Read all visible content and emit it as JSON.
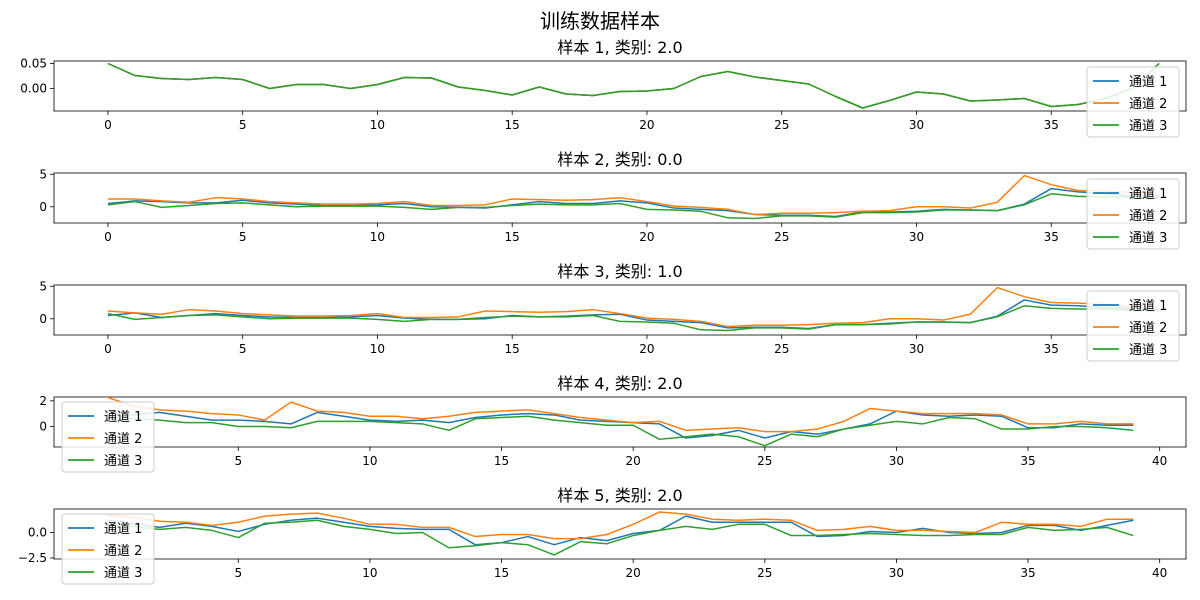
{
  "figure": {
    "title": "训练数据样本"
  },
  "colors": {
    "通道 1": "#1f77b4",
    "通道 2": "#ff7f0e",
    "通道 3": "#2ca02c"
  },
  "chart_data": [
    {
      "type": "line",
      "title": "样本 1, 类别: 2.0",
      "x": [
        0,
        1,
        2,
        3,
        4,
        5,
        6,
        7,
        8,
        9,
        10,
        11,
        12,
        13,
        14,
        15,
        16,
        17,
        18,
        19,
        20,
        21,
        22,
        23,
        24,
        25,
        26,
        27,
        28,
        29,
        30,
        31,
        32,
        33,
        34,
        35,
        36,
        37,
        38,
        39
      ],
      "xlim": [
        -2,
        40
      ],
      "ylim": [
        -0.045,
        0.055
      ],
      "xticks": [
        0,
        5,
        10,
        15,
        20,
        25,
        30,
        35
      ],
      "xticklabels": [
        "0",
        "5",
        "10",
        "15",
        "20",
        "25",
        "30",
        "35"
      ],
      "yticks": [
        0.05,
        0.0
      ],
      "yticklabels": [
        "0.05",
        "0.00"
      ],
      "legend": "right",
      "series": [
        {
          "name": "通道 1",
          "values": [
            0.05,
            0.026,
            0.02,
            0.018,
            0.022,
            0.018,
            0.0,
            0.008,
            0.008,
            0.0,
            0.008,
            0.022,
            0.021,
            0.003,
            -0.004,
            -0.013,
            0.003,
            -0.011,
            -0.014,
            -0.006,
            -0.005,
            0.0,
            0.024,
            0.034,
            0.023,
            0.016,
            0.009,
            -0.016,
            -0.039,
            -0.024,
            -0.007,
            -0.011,
            -0.025,
            -0.023,
            -0.02,
            -0.036,
            -0.032,
            -0.02,
            0.0,
            0.05
          ]
        },
        {
          "name": "通道 2",
          "values": [
            0.05,
            0.026,
            0.02,
            0.018,
            0.022,
            0.018,
            0.0,
            0.008,
            0.008,
            0.0,
            0.008,
            0.022,
            0.021,
            0.003,
            -0.004,
            -0.013,
            0.003,
            -0.011,
            -0.014,
            -0.006,
            -0.005,
            0.0,
            0.024,
            0.034,
            0.023,
            0.016,
            0.009,
            -0.016,
            -0.039,
            -0.024,
            -0.007,
            -0.011,
            -0.025,
            -0.023,
            -0.02,
            -0.036,
            -0.032,
            -0.02,
            0.0,
            0.05
          ]
        },
        {
          "name": "通道 3",
          "values": [
            0.05,
            0.026,
            0.02,
            0.018,
            0.022,
            0.018,
            0.0,
            0.008,
            0.008,
            0.0,
            0.008,
            0.022,
            0.021,
            0.003,
            -0.004,
            -0.013,
            0.003,
            -0.011,
            -0.014,
            -0.006,
            -0.005,
            0.0,
            0.024,
            0.034,
            0.023,
            0.016,
            0.009,
            -0.016,
            -0.039,
            -0.024,
            -0.007,
            -0.011,
            -0.025,
            -0.023,
            -0.02,
            -0.036,
            -0.032,
            -0.02,
            0.0,
            0.05
          ]
        }
      ]
    },
    {
      "type": "line",
      "title": "样本 2, 类别: 0.0",
      "x": [
        0,
        1,
        2,
        3,
        4,
        5,
        6,
        7,
        8,
        9,
        10,
        11,
        12,
        13,
        14,
        15,
        16,
        17,
        18,
        19,
        20,
        21,
        22,
        23,
        24,
        25,
        26,
        27,
        28,
        29,
        30,
        31,
        32,
        33,
        34,
        35,
        36,
        37,
        38,
        39
      ],
      "xlim": [
        -2,
        40
      ],
      "ylim": [
        -2.5,
        5.2
      ],
      "xticks": [
        0,
        5,
        10,
        15,
        20,
        25,
        30,
        35
      ],
      "xticklabels": [
        "0",
        "5",
        "10",
        "15",
        "20",
        "25",
        "30",
        "35"
      ],
      "yticks": [
        5,
        0
      ],
      "yticklabels": [
        "5",
        "0"
      ],
      "legend": "right",
      "series": [
        {
          "name": "通道 1",
          "values": [
            0.5,
            0.9,
            0.8,
            0.6,
            0.6,
            1.0,
            0.6,
            0.4,
            0.2,
            0.2,
            0.3,
            0.5,
            0.0,
            -0.1,
            -0.2,
            0.3,
            0.8,
            0.5,
            0.5,
            0.9,
            0.6,
            -0.2,
            -0.4,
            -0.6,
            -1.2,
            -1.3,
            -1.3,
            -1.5,
            -0.8,
            -0.8,
            -0.7,
            -0.4,
            -0.5,
            -0.6,
            0.4,
            2.8,
            2.3,
            2.0,
            1.7,
            1.6
          ]
        },
        {
          "name": "通道 2",
          "values": [
            1.2,
            1.2,
            0.9,
            0.7,
            1.4,
            1.2,
            0.8,
            0.6,
            0.4,
            0.4,
            0.5,
            0.8,
            0.2,
            0.2,
            0.3,
            1.2,
            1.1,
            1.0,
            1.1,
            1.4,
            0.8,
            0.1,
            -0.1,
            -0.4,
            -1.2,
            -1.0,
            -1.0,
            -0.9,
            -0.7,
            -0.6,
            0.0,
            0.0,
            -0.2,
            0.7,
            4.8,
            3.4,
            2.5,
            2.4,
            2.2,
            1.8
          ]
        },
        {
          "name": "通道 3",
          "values": [
            0.3,
            0.8,
            -0.1,
            0.2,
            0.5,
            0.6,
            0.3,
            0.0,
            0.1,
            0.1,
            0.1,
            -0.1,
            -0.4,
            -0.1,
            -0.1,
            0.2,
            0.4,
            0.3,
            0.3,
            0.5,
            -0.4,
            -0.5,
            -0.7,
            -1.7,
            -1.8,
            -1.4,
            -1.4,
            -1.6,
            -0.9,
            -0.9,
            -0.8,
            -0.5,
            -0.5,
            -0.6,
            0.3,
            2.0,
            1.6,
            1.5,
            1.5,
            1.3
          ]
        }
      ]
    },
    {
      "type": "line",
      "title": "样本 3, 类别: 1.0",
      "x": [
        0,
        1,
        2,
        3,
        4,
        5,
        6,
        7,
        8,
        9,
        10,
        11,
        12,
        13,
        14,
        15,
        16,
        17,
        18,
        19,
        20,
        21,
        22,
        23,
        24,
        25,
        26,
        27,
        28,
        29,
        30,
        31,
        32,
        33,
        34,
        35,
        36,
        37,
        38,
        39
      ],
      "xlim": [
        -2,
        40
      ],
      "ylim": [
        -2.5,
        5.2
      ],
      "xticks": [
        0,
        5,
        10,
        15,
        20,
        25,
        30,
        35
      ],
      "xticklabels": [
        "0",
        "5",
        "10",
        "15",
        "20",
        "25",
        "30",
        "35"
      ],
      "yticks": [
        5,
        0
      ],
      "yticklabels": [
        "5",
        "0"
      ],
      "legend": "right",
      "series": [
        {
          "name": "通道 1",
          "values": [
            0.5,
            0.9,
            0.2,
            0.5,
            0.8,
            0.5,
            0.3,
            0.2,
            0.2,
            0.3,
            0.5,
            0.1,
            -0.1,
            -0.1,
            0.0,
            0.5,
            0.3,
            0.4,
            0.6,
            0.7,
            -0.2,
            -0.4,
            -0.6,
            -1.4,
            -1.3,
            -1.3,
            -1.5,
            -0.9,
            -0.9,
            -0.7,
            -0.5,
            -0.5,
            -0.6,
            0.4,
            2.9,
            2.1,
            2.0,
            1.7,
            1.6,
            1.5
          ]
        },
        {
          "name": "通道 2",
          "values": [
            1.2,
            0.9,
            0.7,
            1.4,
            1.2,
            0.8,
            0.6,
            0.4,
            0.4,
            0.5,
            0.8,
            0.2,
            0.2,
            0.3,
            1.2,
            1.1,
            1.0,
            1.1,
            1.4,
            0.8,
            0.1,
            -0.1,
            -0.4,
            -1.2,
            -1.0,
            -1.0,
            -0.9,
            -0.7,
            -0.6,
            0.0,
            0.0,
            -0.2,
            0.7,
            4.8,
            3.4,
            2.5,
            2.4,
            2.2,
            1.8,
            1.7
          ]
        },
        {
          "name": "通道 3",
          "values": [
            0.8,
            -0.1,
            0.2,
            0.5,
            0.6,
            0.3,
            0.0,
            0.1,
            0.1,
            0.1,
            -0.1,
            -0.4,
            -0.1,
            -0.1,
            0.2,
            0.4,
            0.3,
            0.3,
            0.5,
            -0.4,
            -0.5,
            -0.7,
            -1.7,
            -1.8,
            -1.4,
            -1.4,
            -1.6,
            -0.9,
            -0.9,
            -0.8,
            -0.5,
            -0.5,
            -0.6,
            0.3,
            2.0,
            1.6,
            1.5,
            1.5,
            1.3,
            1.2
          ]
        }
      ]
    },
    {
      "type": "line",
      "title": "样本 4, 类别: 2.0",
      "x": [
        0,
        1,
        2,
        3,
        4,
        5,
        6,
        7,
        8,
        9,
        10,
        11,
        12,
        13,
        14,
        15,
        16,
        17,
        18,
        19,
        20,
        21,
        22,
        23,
        24,
        25,
        26,
        27,
        28,
        29,
        30,
        31,
        32,
        33,
        34,
        35,
        36,
        37,
        38,
        39
      ],
      "xlim": [
        -2,
        41
      ],
      "ylim": [
        -1.6,
        2.3
      ],
      "xticks": [
        5,
        10,
        15,
        20,
        25,
        30,
        35,
        40
      ],
      "xticklabels": [
        "5",
        "10",
        "15",
        "20",
        "25",
        "30",
        "35",
        "40"
      ],
      "yticks": [
        2,
        0
      ],
      "yticklabels": [
        "2",
        "0"
      ],
      "legend": "left",
      "series": [
        {
          "name": "通道 1",
          "values": [
            1.2,
            0.9,
            1.1,
            0.8,
            0.5,
            0.5,
            0.4,
            0.2,
            1.1,
            0.8,
            0.5,
            0.4,
            0.5,
            0.3,
            0.7,
            0.9,
            1.0,
            0.9,
            0.5,
            0.4,
            0.3,
            0.2,
            -0.9,
            -0.7,
            -0.3,
            -0.9,
            -0.4,
            -0.6,
            -0.2,
            0.2,
            1.2,
            0.9,
            0.8,
            0.9,
            0.8,
            -0.1,
            -0.1,
            0.2,
            0.1,
            0.1
          ]
        },
        {
          "name": "通道 2",
          "values": [
            2.3,
            1.6,
            1.3,
            1.2,
            1.0,
            0.9,
            0.5,
            1.9,
            1.2,
            1.1,
            0.8,
            0.8,
            0.6,
            0.8,
            1.1,
            1.2,
            1.3,
            1.0,
            0.7,
            0.5,
            0.3,
            0.4,
            -0.3,
            -0.2,
            -0.1,
            -0.4,
            -0.4,
            -0.2,
            0.4,
            1.4,
            1.2,
            1.0,
            1.0,
            1.0,
            0.9,
            0.2,
            0.2,
            0.4,
            0.2,
            0.2
          ]
        },
        {
          "name": "通道 3",
          "values": [
            0.6,
            0.6,
            0.5,
            0.3,
            0.3,
            0.0,
            0.0,
            -0.1,
            0.4,
            0.4,
            0.4,
            0.3,
            0.2,
            -0.3,
            0.6,
            0.7,
            0.8,
            0.5,
            0.3,
            0.1,
            0.1,
            -1.0,
            -0.8,
            -0.6,
            -0.8,
            -1.5,
            -0.6,
            -0.8,
            -0.2,
            0.1,
            0.4,
            0.2,
            0.7,
            0.6,
            -0.2,
            -0.2,
            0.0,
            0.0,
            -0.1,
            -0.3
          ]
        }
      ]
    },
    {
      "type": "line",
      "title": "样本 5, 类别: 2.0",
      "x": [
        0,
        1,
        2,
        3,
        4,
        5,
        6,
        7,
        8,
        9,
        10,
        11,
        12,
        13,
        14,
        15,
        16,
        17,
        18,
        19,
        20,
        21,
        22,
        23,
        24,
        25,
        26,
        27,
        28,
        29,
        30,
        31,
        32,
        33,
        34,
        35,
        36,
        37,
        38,
        39
      ],
      "xlim": [
        -2,
        41
      ],
      "ylim": [
        -2.6,
        2.3
      ],
      "xticks": [
        5,
        10,
        15,
        20,
        25,
        30,
        35,
        40
      ],
      "xticklabels": [
        "5",
        "10",
        "15",
        "20",
        "25",
        "30",
        "35",
        "40"
      ],
      "yticks": [
        0.0,
        -2.5
      ],
      "yticklabels": [
        "0.0",
        "−2.5"
      ],
      "legend": "left",
      "series": [
        {
          "name": "通道 1",
          "values": [
            1.2,
            0.9,
            0.5,
            0.9,
            0.6,
            0.1,
            0.8,
            1.2,
            1.4,
            1.0,
            0.6,
            0.4,
            0.3,
            0.3,
            -1.2,
            -1.0,
            -0.4,
            -1.2,
            -0.5,
            -0.8,
            -0.1,
            0.2,
            1.6,
            1.0,
            1.0,
            1.0,
            1.0,
            -0.4,
            -0.3,
            0.1,
            0.0,
            0.4,
            0.0,
            -0.1,
            0.0,
            0.7,
            0.7,
            0.2,
            0.7,
            1.2
          ]
        },
        {
          "name": "通道 2",
          "values": [
            1.7,
            1.5,
            1.1,
            1.0,
            0.7,
            1.0,
            1.6,
            1.8,
            1.9,
            1.4,
            0.8,
            0.8,
            0.5,
            0.5,
            -0.4,
            -0.2,
            -0.2,
            -0.6,
            -0.6,
            -0.2,
            0.8,
            2.0,
            1.8,
            1.3,
            1.2,
            1.3,
            1.2,
            0.2,
            0.3,
            0.6,
            0.2,
            0.2,
            0.1,
            0.0,
            1.0,
            0.8,
            0.8,
            0.6,
            1.3,
            1.3
          ]
        },
        {
          "name": "通道 3",
          "values": [
            0.8,
            0.6,
            0.3,
            0.5,
            0.2,
            -0.5,
            0.9,
            1.0,
            1.2,
            0.6,
            0.3,
            -0.1,
            0.0,
            -1.5,
            -1.3,
            -1.0,
            -1.2,
            -2.2,
            -0.9,
            -1.1,
            -0.3,
            0.2,
            0.6,
            0.3,
            0.8,
            0.8,
            -0.3,
            -0.3,
            -0.2,
            -0.1,
            -0.2,
            -0.3,
            -0.3,
            -0.2,
            -0.2,
            0.5,
            0.2,
            0.3,
            0.5,
            -0.3
          ]
        }
      ]
    }
  ]
}
